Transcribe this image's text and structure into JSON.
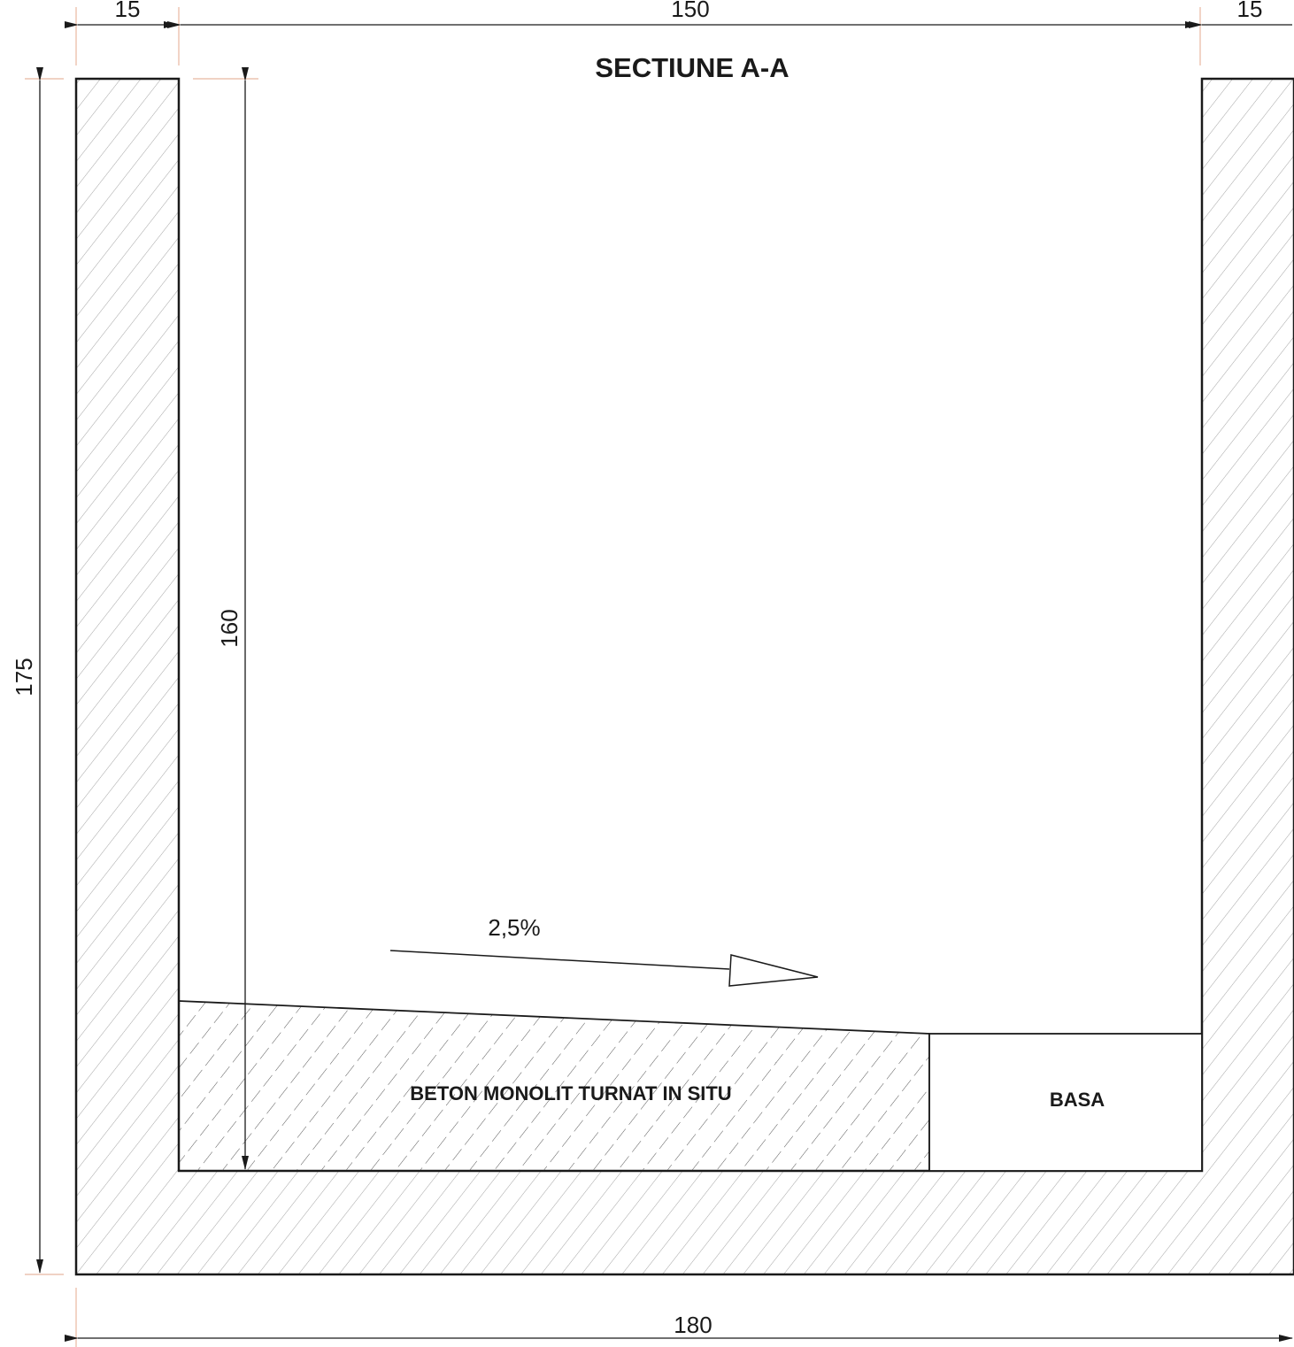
{
  "title": "SECTIUNE A-A",
  "dimensions": {
    "top_left_wall": "15",
    "top_inner_width": "150",
    "top_right_wall": "15",
    "total_height": "175",
    "inner_height": "160",
    "total_width": "180"
  },
  "slope_label": "2,5%",
  "fill_label": "BETON MONOLIT TURNAT IN SITU",
  "basa_label": "BASA",
  "colors": {
    "line": "#1a1a1a",
    "hatch": "#9a9a9a",
    "extension": "#e8b7a0"
  }
}
